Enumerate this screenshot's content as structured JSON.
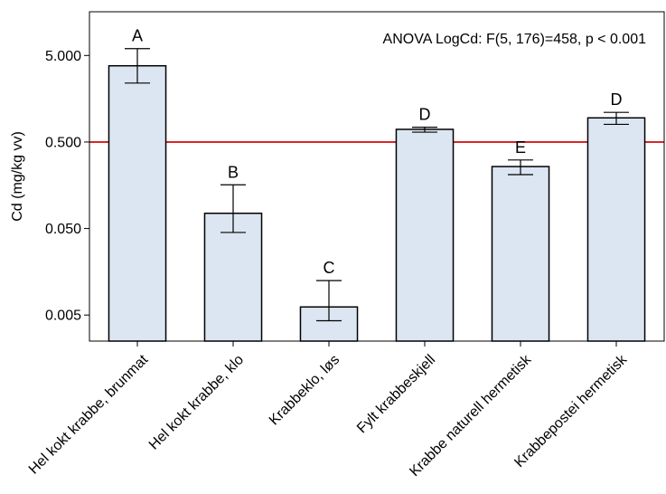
{
  "chart_data": {
    "type": "bar",
    "ylabel": "Cd (mg/kg vv)",
    "yscale": "log",
    "ylim": [
      0.0025,
      16
    ],
    "yticks": [
      0.005,
      0.05,
      0.5,
      5
    ],
    "ytick_labels": [
      "0.005",
      "0.050",
      "0.500",
      "5.000"
    ],
    "annotation": "ANOVA LogCd: F(5, 176)=458, p < 0.001",
    "reference_line": {
      "value": 0.5,
      "color": "#d62728"
    },
    "bar_color": "#dce6f2",
    "categories": [
      "Hel kokt krabbe, brunmat",
      "Hel kokt krabbe, klo",
      "Krabbeklo, løs",
      "Fylt krabbeskjell",
      "Krabbe naturell hermetisk",
      "Krabbepostei hermetisk"
    ],
    "values": [
      3.8,
      0.075,
      0.0062,
      0.7,
      0.26,
      0.95
    ],
    "error_low": [
      2.4,
      0.045,
      0.0043,
      0.65,
      0.21,
      0.8
    ],
    "error_high": [
      6.0,
      0.16,
      0.0125,
      0.74,
      0.31,
      1.1
    ],
    "significance": [
      "A",
      "B",
      "C",
      "D",
      "E",
      "D"
    ],
    "grid": false,
    "legend": "none"
  }
}
